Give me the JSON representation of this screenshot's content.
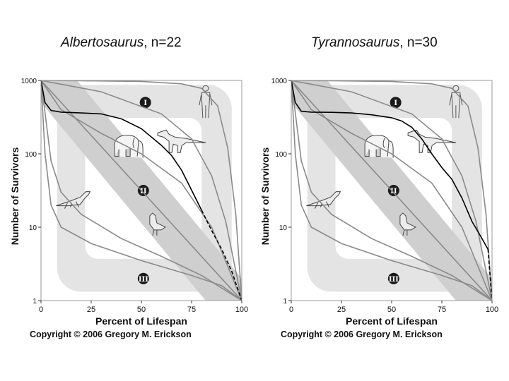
{
  "copyright": "Copyright © 2006 Gregory M. Erickson",
  "zone_labels": [
    "I",
    "II",
    "III"
  ],
  "colors": {
    "background": "#ffffff",
    "zone_band": "#e4e4e4",
    "diagonal_band": "#cfcfcf",
    "reference_curve": "#8a8a8a",
    "dinosaur_curve": "#000000"
  },
  "icons": [
    "human-icon",
    "elephant-icon",
    "dinosaur-icon",
    "lizard-icon",
    "bird-icon"
  ],
  "chart_data": [
    {
      "type": "line",
      "title_italic": "Albertosaurus",
      "title_rest": ", n=22",
      "xlabel": "Percent  of  Lifespan",
      "ylabel": "Number  of  Survivors",
      "xlim": [
        0,
        100
      ],
      "ylim": [
        1,
        1000
      ],
      "yscale": "log",
      "xticks": [
        0,
        25,
        50,
        75,
        100
      ],
      "xtick_labels": [
        "0",
        "25",
        "50",
        "75",
        "100"
      ],
      "yticks": [
        1,
        10,
        100,
        1000
      ],
      "ytick_labels": [
        "1",
        "10",
        "100",
        "1000"
      ],
      "grid": false,
      "legend": "none",
      "reference_curves": [
        {
          "type": "I",
          "x": [
            0,
            20,
            50,
            70,
            80,
            88,
            93,
            97,
            100
          ],
          "y": [
            1000,
            990,
            970,
            900,
            780,
            450,
            120,
            15,
            1
          ]
        },
        {
          "type": "I-variant",
          "x": [
            0,
            30,
            60,
            75,
            85,
            92,
            100
          ],
          "y": [
            1000,
            700,
            350,
            160,
            50,
            12,
            1
          ]
        },
        {
          "type": "II-variant",
          "x": [
            0,
            10,
            30,
            50,
            70,
            85,
            100
          ],
          "y": [
            1000,
            400,
            190,
            100,
            40,
            10,
            1
          ]
        },
        {
          "type": "II",
          "x": [
            0,
            100
          ],
          "y": [
            1000,
            1
          ]
        },
        {
          "type": "III",
          "x": [
            0,
            5,
            10,
            20,
            40,
            60,
            80,
            100
          ],
          "y": [
            1000,
            80,
            30,
            15,
            7,
            4,
            2.2,
            1
          ]
        },
        {
          "type": "III-variant",
          "x": [
            0,
            2,
            5,
            10,
            25,
            50,
            75,
            90,
            100
          ],
          "y": [
            1000,
            100,
            20,
            10,
            6,
            3.5,
            2.2,
            1.6,
            1
          ]
        }
      ],
      "dinosaur_solid": {
        "x": [
          0,
          2,
          5,
          10,
          20,
          30,
          40,
          50,
          60,
          65,
          70,
          75,
          80
        ],
        "y": [
          1000,
          500,
          390,
          370,
          360,
          350,
          300,
          220,
          130,
          95,
          60,
          32,
          17
        ]
      },
      "dinosaur_dashed": {
        "x": [
          80,
          85,
          90,
          95,
          100
        ],
        "y": [
          17,
          9,
          5,
          2.5,
          1
        ]
      }
    },
    {
      "type": "line",
      "title_italic": "Tyrannosaurus",
      "title_rest": ", n=30",
      "xlabel": "Percent  of  Lifespan",
      "ylabel": "Number  of  Survivors",
      "xlim": [
        0,
        100
      ],
      "ylim": [
        1,
        1000
      ],
      "yscale": "log",
      "xticks": [
        0,
        25,
        50,
        75,
        100
      ],
      "xtick_labels": [
        "0",
        "25",
        "50",
        "75",
        "100"
      ],
      "yticks": [
        1,
        10,
        100,
        1000
      ],
      "ytick_labels": [
        "1",
        "10",
        "100",
        "1000"
      ],
      "grid": false,
      "legend": "none",
      "reference_curves": [
        {
          "type": "I",
          "x": [
            0,
            20,
            50,
            70,
            80,
            88,
            93,
            97,
            100
          ],
          "y": [
            1000,
            990,
            970,
            900,
            780,
            450,
            120,
            15,
            1
          ]
        },
        {
          "type": "I-variant",
          "x": [
            0,
            30,
            60,
            75,
            85,
            92,
            100
          ],
          "y": [
            1000,
            700,
            350,
            160,
            50,
            12,
            1
          ]
        },
        {
          "type": "II-variant",
          "x": [
            0,
            10,
            30,
            50,
            70,
            85,
            100
          ],
          "y": [
            1000,
            400,
            190,
            100,
            40,
            10,
            1
          ]
        },
        {
          "type": "II",
          "x": [
            0,
            100
          ],
          "y": [
            1000,
            1
          ]
        },
        {
          "type": "III",
          "x": [
            0,
            5,
            10,
            20,
            40,
            60,
            80,
            100
          ],
          "y": [
            1000,
            80,
            30,
            15,
            7,
            4,
            2.2,
            1
          ]
        },
        {
          "type": "III-variant",
          "x": [
            0,
            2,
            5,
            10,
            25,
            50,
            75,
            90,
            100
          ],
          "y": [
            1000,
            100,
            20,
            10,
            6,
            3.5,
            2.2,
            1.6,
            1
          ]
        }
      ],
      "dinosaur_solid": {
        "x": [
          0,
          2,
          5,
          10,
          20,
          30,
          40,
          50,
          55,
          60,
          65,
          70,
          75,
          80,
          85,
          90,
          95,
          98
        ],
        "y": [
          1000,
          500,
          380,
          370,
          368,
          360,
          340,
          310,
          280,
          230,
          160,
          100,
          65,
          45,
          25,
          12,
          7,
          5
        ]
      },
      "dinosaur_dashed": {
        "x": [
          98,
          100
        ],
        "y": [
          5,
          1
        ]
      }
    }
  ]
}
